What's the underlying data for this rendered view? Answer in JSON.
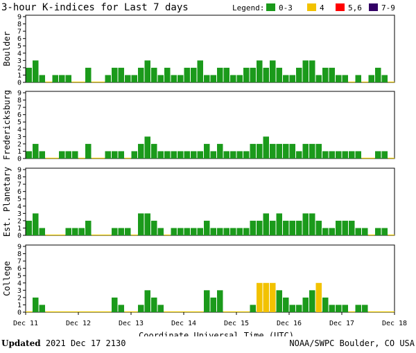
{
  "chart_data": {
    "type": "bar",
    "title": "3-hour K-indices for Last 7 days",
    "legend": {
      "label": "Legend:",
      "placement": "top-right",
      "items": [
        {
          "label": "0-3",
          "color": "#1b9a1b"
        },
        {
          "label": "4",
          "color": "#f2c200"
        },
        {
          "label": "5,6",
          "color": "#ff0000"
        },
        {
          "label": "7-9",
          "color": "#330066"
        }
      ]
    },
    "xlabel": "Coordinate Universal Time (UTC)",
    "x_ticks": [
      "Dec 11",
      "Dec 12",
      "Dec 13",
      "Dec 14",
      "Dec 15",
      "Dec 16",
      "Dec 17",
      "Dec 18"
    ],
    "y_ticks": [
      "0",
      "1",
      "2",
      "3",
      "4",
      "5",
      "6",
      "7",
      "8",
      "9"
    ],
    "ylim": [
      0,
      9
    ],
    "interval_hours": 3,
    "grid": false,
    "series": [
      {
        "name": "Boulder",
        "values": [
          2,
          3,
          1,
          0,
          1,
          1,
          1,
          0,
          0,
          2,
          0,
          0,
          1,
          2,
          2,
          1,
          1,
          2,
          3,
          2,
          1,
          2,
          1,
          1,
          2,
          2,
          3,
          1,
          1,
          2,
          2,
          1,
          1,
          2,
          2,
          3,
          2,
          3,
          2,
          1,
          1,
          2,
          3,
          3,
          1,
          2,
          2,
          1,
          1,
          0,
          1,
          0,
          1,
          2,
          1,
          0
        ]
      },
      {
        "name": "Fredericksburg",
        "values": [
          1,
          2,
          1,
          0,
          0,
          1,
          1,
          1,
          0,
          2,
          0,
          0,
          1,
          1,
          1,
          0,
          1,
          2,
          3,
          2,
          1,
          1,
          1,
          1,
          1,
          1,
          1,
          2,
          1,
          2,
          1,
          1,
          1,
          1,
          2,
          2,
          3,
          2,
          2,
          2,
          2,
          1,
          2,
          2,
          2,
          1,
          1,
          1,
          1,
          1,
          1,
          0,
          0,
          1,
          1,
          0
        ]
      },
      {
        "name": "Est. Planetary",
        "values": [
          2,
          3,
          1,
          0,
          0,
          0,
          1,
          1,
          1,
          2,
          0,
          0,
          0,
          1,
          1,
          1,
          0,
          3,
          3,
          2,
          1,
          0,
          1,
          1,
          1,
          1,
          1,
          2,
          1,
          1,
          1,
          1,
          1,
          1,
          2,
          2,
          3,
          2,
          3,
          2,
          2,
          2,
          3,
          3,
          2,
          1,
          1,
          2,
          2,
          2,
          1,
          1,
          0,
          1,
          1,
          0
        ]
      },
      {
        "name": "College",
        "values": [
          0,
          2,
          1,
          0,
          0,
          0,
          0,
          0,
          0,
          0,
          0,
          0,
          0,
          2,
          1,
          0,
          0,
          1,
          3,
          2,
          1,
          0,
          0,
          0,
          0,
          0,
          0,
          3,
          2,
          3,
          0,
          0,
          0,
          0,
          1,
          4,
          4,
          4,
          3,
          2,
          1,
          1,
          2,
          3,
          4,
          2,
          1,
          1,
          1,
          0,
          1,
          1,
          0,
          0,
          0,
          0
        ]
      }
    ]
  },
  "footer": {
    "updated_label": "Updated",
    "updated_value": "2021 Dec 17 2130",
    "source": "NOAA/SWPC Boulder, CO USA"
  }
}
